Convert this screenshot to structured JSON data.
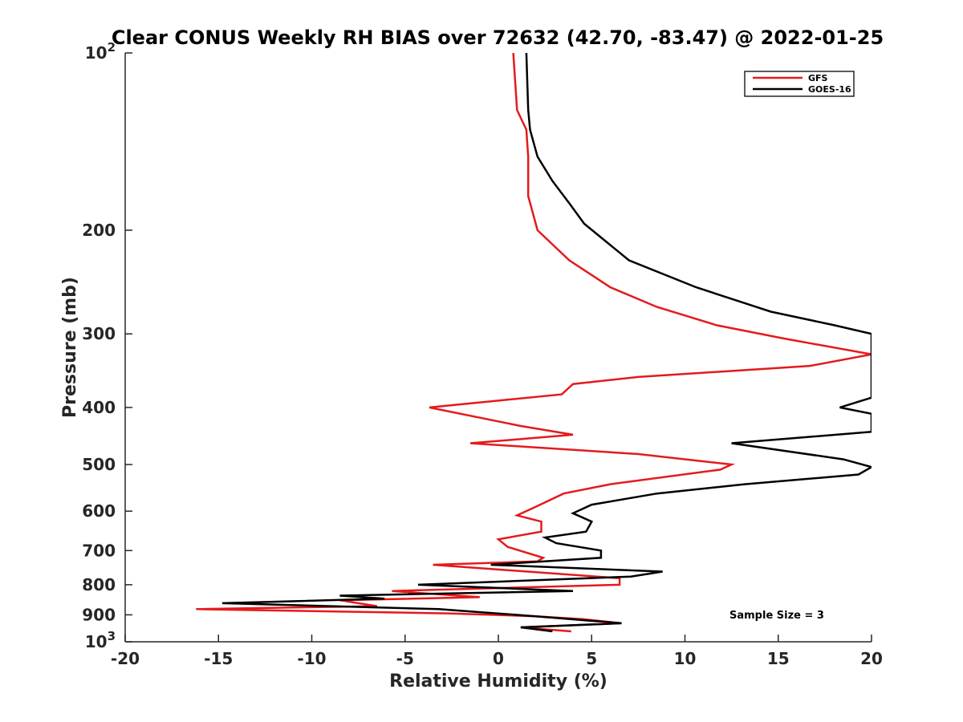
{
  "chart_data": {
    "type": "line",
    "title": "Clear CONUS Weekly RH BIAS over 72632 (42.70, -83.47) @ 2022-01-25",
    "xlabel": "Relative Humidity (%)",
    "ylabel": "Pressure (mb)",
    "xlim": [
      -20,
      20
    ],
    "ylim": [
      100,
      1000
    ],
    "y_scale": "log",
    "y_reversed": true,
    "grid": false,
    "legend_position": "top-right",
    "xticks": [
      -20,
      -15,
      -10,
      -5,
      0,
      5,
      10,
      15,
      20
    ],
    "xtick_labels": [
      "-20",
      "-15",
      "-10",
      "-5",
      "0",
      "5",
      "10",
      "15",
      "20"
    ],
    "yticks": [
      200,
      300,
      400,
      500,
      600,
      700,
      800,
      900
    ],
    "ytick_labels": [
      "200",
      "300",
      "400",
      "500",
      "600",
      "700",
      "800",
      "900"
    ],
    "ytick_end_labels": [
      {
        "value": 100,
        "base": "10",
        "exp": "2"
      },
      {
        "value": 1000,
        "base": "10",
        "exp": "3"
      }
    ],
    "annotation": "Sample Size = 3",
    "series": [
      {
        "name": "GFS",
        "color": "#e41a1c",
        "points": [
          [
            0.8,
            100
          ],
          [
            1.0,
            125
          ],
          [
            1.5,
            135
          ],
          [
            1.6,
            150
          ],
          [
            1.6,
            175
          ],
          [
            2.1,
            200
          ],
          [
            3.8,
            225
          ],
          [
            6.0,
            250
          ],
          [
            8.5,
            270
          ],
          [
            11.7,
            290
          ],
          [
            15.2,
            305
          ],
          [
            20.0,
            325
          ],
          [
            16.7,
            340
          ],
          [
            7.5,
            355
          ],
          [
            4.0,
            365
          ],
          [
            3.4,
            380
          ],
          [
            -3.7,
            400
          ],
          [
            1.2,
            430
          ],
          [
            4.0,
            445
          ],
          [
            -1.5,
            460
          ],
          [
            7.5,
            480
          ],
          [
            12.5,
            500
          ],
          [
            11.9,
            510
          ],
          [
            6.0,
            540
          ],
          [
            3.5,
            560
          ],
          [
            2.0,
            590
          ],
          [
            1.0,
            610
          ],
          [
            2.3,
            625
          ],
          [
            2.3,
            650
          ],
          [
            0.0,
            670
          ],
          [
            0.5,
            690
          ],
          [
            2.4,
            720
          ],
          [
            2.1,
            730
          ],
          [
            -3.5,
            740
          ],
          [
            6.5,
            780
          ],
          [
            6.5,
            800
          ],
          [
            -5.7,
            820
          ],
          [
            -1.0,
            840
          ],
          [
            -8.5,
            850
          ],
          [
            -6.5,
            870
          ],
          [
            -16.2,
            880
          ],
          [
            -2.7,
            895
          ],
          [
            2.0,
            905
          ],
          [
            4.5,
            915
          ],
          [
            6.6,
            930
          ],
          [
            1.2,
            945
          ],
          [
            3.9,
            960
          ]
        ]
      },
      {
        "name": "GOES-16",
        "color": "#000000",
        "points": [
          [
            1.5,
            100
          ],
          [
            1.6,
            125
          ],
          [
            1.7,
            135
          ],
          [
            2.1,
            150
          ],
          [
            2.9,
            165
          ],
          [
            3.8,
            180
          ],
          [
            4.6,
            195
          ],
          [
            7.0,
            225
          ],
          [
            10.6,
            250
          ],
          [
            14.6,
            275
          ],
          [
            18.0,
            290
          ],
          [
            20.0,
            300
          ],
          [
            20.0,
            385
          ],
          [
            18.3,
            400
          ],
          [
            20.0,
            410
          ],
          [
            20.0,
            440
          ],
          [
            12.5,
            460
          ],
          [
            18.5,
            490
          ],
          [
            20.0,
            505
          ],
          [
            19.3,
            520
          ],
          [
            13.2,
            540
          ],
          [
            8.5,
            560
          ],
          [
            5.0,
            585
          ],
          [
            4.0,
            605
          ],
          [
            5.0,
            625
          ],
          [
            4.7,
            650
          ],
          [
            2.5,
            665
          ],
          [
            3.1,
            680
          ],
          [
            5.5,
            700
          ],
          [
            5.5,
            720
          ],
          [
            -0.4,
            740
          ],
          [
            8.8,
            760
          ],
          [
            7.1,
            775
          ],
          [
            -4.3,
            800
          ],
          [
            4.0,
            820
          ],
          [
            -8.5,
            835
          ],
          [
            -6.1,
            845
          ],
          [
            -14.8,
            860
          ],
          [
            -3.2,
            880
          ],
          [
            2.0,
            905
          ],
          [
            6.6,
            930
          ],
          [
            1.2,
            945
          ],
          [
            2.9,
            960
          ]
        ]
      }
    ]
  }
}
